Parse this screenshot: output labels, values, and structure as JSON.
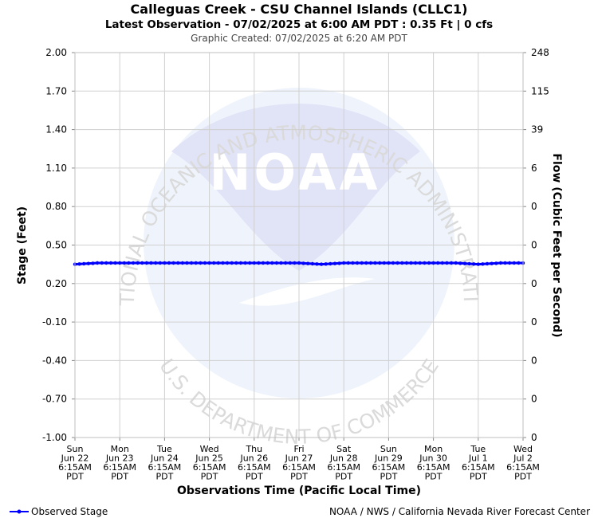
{
  "chart_data": {
    "type": "line",
    "title": "Calleguas Creek - CSU Channel Islands (CLLC1)",
    "subtitle": "Latest Observation - 07/02/2025 at 6:00 AM PDT : 0.35 Ft | 0 cfs",
    "created": "Graphic Created: 07/02/2025 at 6:20 AM PDT",
    "xlabel": "Observations Time (Pacific Local Time)",
    "ylabel": "Stage (Feet)",
    "y2label": "Flow (Cubic Feet per Second)",
    "ylim": [
      -1.0,
      2.0
    ],
    "yticks": [
      "2.00",
      "1.70",
      "1.40",
      "1.10",
      "0.80",
      "0.50",
      "0.20",
      "-0.10",
      "-0.40",
      "-0.70",
      "-1.00"
    ],
    "y2ticks": [
      "248",
      "115",
      "39",
      "6",
      "0",
      "0",
      "0",
      "0",
      "0",
      "0",
      "0"
    ],
    "grid": true,
    "x_ticks": [
      {
        "day": "Sun",
        "date": "Jun 22",
        "time": "6:15AM",
        "tz": "PDT"
      },
      {
        "day": "Mon",
        "date": "Jun 23",
        "time": "6:15AM",
        "tz": "PDT"
      },
      {
        "day": "Tue",
        "date": "Jun 24",
        "time": "6:15AM",
        "tz": "PDT"
      },
      {
        "day": "Wed",
        "date": "Jun 25",
        "time": "6:15AM",
        "tz": "PDT"
      },
      {
        "day": "Thu",
        "date": "Jun 26",
        "time": "6:15AM",
        "tz": "PDT"
      },
      {
        "day": "Fri",
        "date": "Jun 27",
        "time": "6:15AM",
        "tz": "PDT"
      },
      {
        "day": "Sat",
        "date": "Jun 28",
        "time": "6:15AM",
        "tz": "PDT"
      },
      {
        "day": "Sun",
        "date": "Jun 29",
        "time": "6:15AM",
        "tz": "PDT"
      },
      {
        "day": "Mon",
        "date": "Jun 30",
        "time": "6:15AM",
        "tz": "PDT"
      },
      {
        "day": "Tue",
        "date": "Jul 1",
        "time": "6:15AM",
        "tz": "PDT"
      },
      {
        "day": "Wed",
        "date": "Jul 2",
        "time": "6:15AM",
        "tz": "PDT"
      }
    ],
    "series": [
      {
        "name": "Observed Stage",
        "color": "#0000ff",
        "x": [
          0,
          0.5,
          1,
          1.5,
          2,
          2.5,
          3,
          3.5,
          4,
          4.5,
          5,
          5.5,
          6,
          6.5,
          7,
          7.5,
          8,
          8.5,
          9,
          9.5,
          10
        ],
        "values": [
          0.35,
          0.36,
          0.36,
          0.36,
          0.36,
          0.36,
          0.36,
          0.36,
          0.36,
          0.36,
          0.36,
          0.35,
          0.36,
          0.36,
          0.36,
          0.36,
          0.36,
          0.36,
          0.35,
          0.36,
          0.36
        ]
      }
    ],
    "legend": "bottom-left",
    "credit": "NOAA / NWS / California Nevada River Forecast Center",
    "watermark": {
      "logo": "NOAA",
      "ring_top": "NATIONAL OCEANIC AND ATMOSPHERIC ADMINISTRATION",
      "ring_bottom": "U.S. DEPARTMENT OF COMMERCE"
    }
  }
}
